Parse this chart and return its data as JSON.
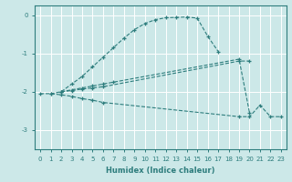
{
  "xlabel": "Humidex (Indice chaleur)",
  "xlim": [
    -0.5,
    23.5
  ],
  "ylim": [
    -3.5,
    0.25
  ],
  "yticks": [
    0,
    -1,
    -2,
    -3
  ],
  "xticks": [
    0,
    1,
    2,
    3,
    4,
    5,
    6,
    7,
    8,
    9,
    10,
    11,
    12,
    13,
    14,
    15,
    16,
    17,
    18,
    19,
    20,
    21,
    22,
    23
  ],
  "bg_color": "#cce8e8",
  "line_color": "#2e7d7d",
  "grid_color": "#ffffff",
  "line1_x": [
    1,
    2,
    3,
    4,
    5,
    6,
    7,
    8,
    9,
    10,
    11,
    12,
    13,
    14,
    15,
    16,
    17
  ],
  "line1_y": [
    -2.05,
    -2.0,
    -1.8,
    -1.6,
    -1.35,
    -1.1,
    -0.85,
    -0.6,
    -0.38,
    -0.22,
    -0.12,
    -0.07,
    -0.06,
    -0.05,
    -0.08,
    -0.55,
    -0.95
  ],
  "line2_x": [
    2,
    3,
    4,
    5,
    6,
    7,
    19,
    20
  ],
  "line2_y": [
    -2.0,
    -1.95,
    -1.9,
    -1.85,
    -1.8,
    -1.75,
    -1.15,
    -2.55
  ],
  "line3_x": [
    2,
    3,
    4,
    5,
    6,
    19,
    20
  ],
  "line3_y": [
    -2.0,
    -1.97,
    -1.93,
    -1.9,
    -1.87,
    -1.2,
    -1.2
  ],
  "line4_x": [
    0,
    1,
    2,
    3,
    4,
    5,
    6,
    19,
    20,
    21,
    22,
    23
  ],
  "line4_y": [
    -2.05,
    -2.05,
    -2.08,
    -2.12,
    -2.18,
    -2.22,
    -2.28,
    -2.65,
    -2.65,
    -2.35,
    -2.65,
    -2.65
  ]
}
